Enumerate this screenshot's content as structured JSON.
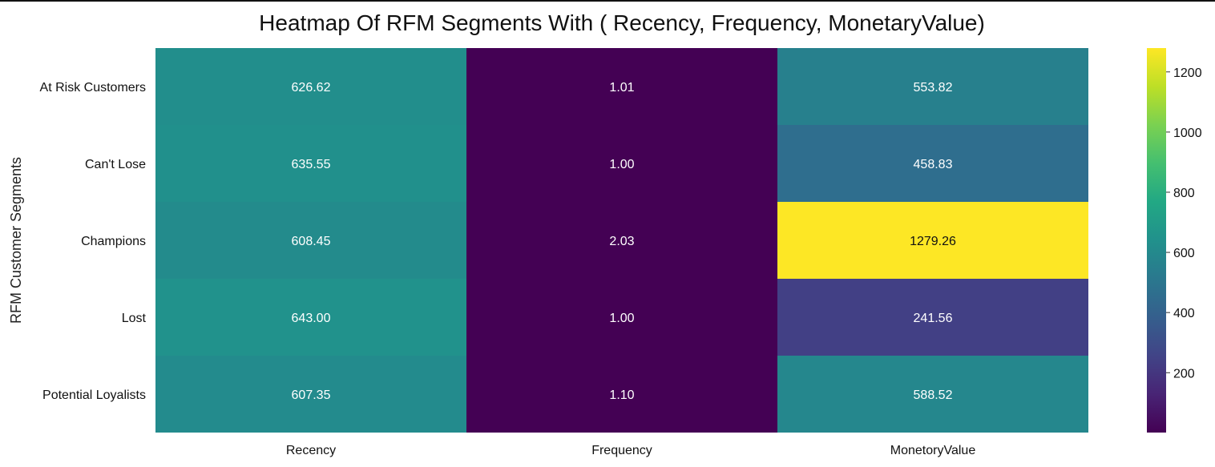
{
  "chart_data": {
    "type": "heatmap",
    "title": "Heatmap Of RFM Segments With ( Recency, Frequency, MonetaryValue)",
    "xlabel": "",
    "ylabel": "RFM Customer Segments",
    "columns": [
      "Recency",
      "Frequency",
      "MonetoryValue"
    ],
    "rows": [
      "At Risk Customers",
      "Can't Lose",
      "Champions",
      "Lost",
      "Potential Loyalists"
    ],
    "values": [
      [
        626.62,
        1.01,
        553.82
      ],
      [
        635.55,
        1.0,
        458.83
      ],
      [
        608.45,
        2.03,
        1279.26
      ],
      [
        643.0,
        1.0,
        241.56
      ],
      [
        607.35,
        1.1,
        588.52
      ]
    ],
    "annotation_labels": [
      [
        "626.62",
        "1.01",
        "553.82"
      ],
      [
        "635.55",
        "1.00",
        "458.83"
      ],
      [
        "608.45",
        "2.03",
        "1279.26"
      ],
      [
        "643.00",
        "1.00",
        "241.56"
      ],
      [
        "607.35",
        "1.10",
        "588.52"
      ]
    ],
    "colormap": "viridis",
    "colorbar": {
      "range": [
        1.0,
        1279.26
      ],
      "ticks": [
        200,
        400,
        600,
        800,
        1000,
        1200
      ],
      "tick_labels": [
        "200",
        "400",
        "600",
        "800",
        "1000",
        "1200"
      ],
      "placement": "right"
    },
    "grid": false
  }
}
